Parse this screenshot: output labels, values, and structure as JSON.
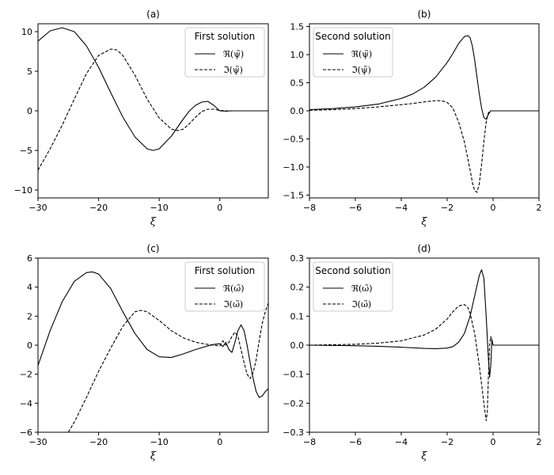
{
  "chart_data": [
    {
      "type": "line",
      "panel_label": "(a)",
      "xlabel": "ξ",
      "ylabel": "",
      "xlim": [
        -30,
        8
      ],
      "ylim": [
        -11,
        11
      ],
      "xticks": [
        "-30",
        "-20",
        "-10",
        "0"
      ],
      "yticks": [
        "-10",
        "-5",
        "0",
        "5",
        "10"
      ],
      "legend": {
        "title": "First solution",
        "placement": "top-right"
      },
      "series": [
        {
          "name": "ℜ(ψ̃)",
          "style": "solid",
          "x": [
            -30,
            -28,
            -26,
            -24,
            -22,
            -20,
            -18,
            -16,
            -14,
            -12,
            -11,
            -10,
            -8,
            -6,
            -5,
            -4,
            -3,
            -2,
            -1,
            0,
            1,
            2,
            4,
            6,
            8
          ],
          "y": [
            8.8,
            10.1,
            10.5,
            10.0,
            8.2,
            5.5,
            2.3,
            -0.8,
            -3.3,
            -4.8,
            -5.0,
            -4.8,
            -3.2,
            -1.0,
            0.0,
            0.7,
            1.1,
            1.2,
            0.7,
            0.0,
            -0.05,
            0,
            0,
            0,
            0
          ]
        },
        {
          "name": "ℑ(ψ̃)",
          "style": "dashed",
          "x": [
            -30,
            -28,
            -26,
            -24,
            -22,
            -20,
            -18,
            -17,
            -16,
            -14,
            -12,
            -10,
            -8,
            -7,
            -6,
            -5,
            -4,
            -3,
            -2,
            -1,
            0,
            1,
            2,
            4,
            6,
            8
          ],
          "y": [
            -7.5,
            -4.8,
            -1.8,
            1.5,
            4.7,
            7.0,
            7.8,
            7.7,
            7.0,
            4.5,
            1.5,
            -0.9,
            -2.3,
            -2.5,
            -2.3,
            -1.6,
            -0.8,
            -0.1,
            0.2,
            0.2,
            0.05,
            0,
            0,
            0,
            0,
            0
          ]
        }
      ]
    },
    {
      "type": "line",
      "panel_label": "(b)",
      "xlabel": "ξ",
      "ylabel": "",
      "xlim": [
        -8,
        2
      ],
      "ylim": [
        -1.55,
        1.55
      ],
      "xticks": [
        "-8",
        "-6",
        "-4",
        "-2",
        "0",
        "2"
      ],
      "yticks": [
        "-1.5",
        "-1.0",
        "-0.5",
        "0.0",
        "0.5",
        "1.0",
        "1.5"
      ],
      "legend": {
        "title": "Second solution",
        "placement": "top-left"
      },
      "series": [
        {
          "name": "ℜ(ψ̃)",
          "style": "solid",
          "x": [
            -8,
            -7,
            -6,
            -5,
            -4,
            -3.5,
            -3,
            -2.5,
            -2,
            -1.75,
            -1.5,
            -1.25,
            -1.1,
            -1.0,
            -0.9,
            -0.8,
            -0.7,
            -0.6,
            -0.5,
            -0.4,
            -0.3,
            -0.2,
            -0.1,
            0,
            0.5,
            1,
            2
          ],
          "y": [
            0.02,
            0.04,
            0.07,
            0.12,
            0.22,
            0.3,
            0.42,
            0.6,
            0.86,
            1.02,
            1.2,
            1.32,
            1.34,
            1.3,
            1.15,
            0.9,
            0.6,
            0.3,
            0.05,
            -0.12,
            -0.15,
            -0.06,
            0.0,
            0,
            0,
            0,
            0
          ]
        },
        {
          "name": "ℑ(ψ̃)",
          "style": "dashed",
          "x": [
            -8,
            -7,
            -6,
            -5,
            -4,
            -3.5,
            -3,
            -2.5,
            -2.25,
            -2,
            -1.75,
            -1.5,
            -1.25,
            -1.0,
            -0.9,
            -0.8,
            -0.7,
            -0.6,
            -0.5,
            -0.4,
            -0.3,
            -0.2,
            -0.1,
            0,
            0.5,
            1,
            2
          ],
          "y": [
            0.01,
            0.02,
            0.04,
            0.07,
            0.11,
            0.13,
            0.16,
            0.18,
            0.18,
            0.15,
            0.05,
            -0.2,
            -0.55,
            -1.05,
            -1.28,
            -1.42,
            -1.45,
            -1.3,
            -0.95,
            -0.55,
            -0.2,
            -0.03,
            0.0,
            0,
            0,
            0,
            0
          ]
        }
      ]
    },
    {
      "type": "line",
      "panel_label": "(c)",
      "xlabel": "ξ",
      "ylabel": "",
      "xlim": [
        -30,
        8
      ],
      "ylim": [
        -6,
        6
      ],
      "xticks": [
        "-30",
        "-20",
        "-10",
        "0"
      ],
      "yticks": [
        "-6",
        "-4",
        "-2",
        "0",
        "2",
        "4",
        "6"
      ],
      "legend": {
        "title": "First solution",
        "placement": "top-right"
      },
      "series": [
        {
          "name": "ℜ(ω̃)",
          "style": "solid",
          "x": [
            -30,
            -28,
            -26,
            -24,
            -22,
            -21,
            -20,
            -18,
            -16,
            -14,
            -12,
            -10,
            -8,
            -6,
            -4,
            -2,
            -1,
            0,
            0.5,
            1,
            1.5,
            2,
            2.5,
            3,
            3.5,
            4,
            4.5,
            5,
            5.5,
            6,
            6.5,
            7,
            7.5,
            8
          ],
          "y": [
            -1.4,
            1.0,
            3.0,
            4.4,
            5.0,
            5.05,
            4.9,
            3.9,
            2.3,
            0.8,
            -0.3,
            -0.8,
            -0.85,
            -0.6,
            -0.3,
            -0.05,
            0.05,
            0.1,
            -0.1,
            0.2,
            -0.3,
            -0.5,
            0.2,
            1.0,
            1.4,
            1.0,
            0.0,
            -1.2,
            -2.3,
            -3.2,
            -3.6,
            -3.5,
            -3.2,
            -3.0
          ]
        },
        {
          "name": "ℑ(ω̃)",
          "style": "dashed",
          "x": [
            -25,
            -24,
            -22,
            -20,
            -18,
            -16,
            -14,
            -13,
            -12,
            -10,
            -8,
            -6,
            -4,
            -2,
            -1,
            0,
            0.5,
            1,
            1.5,
            2,
            2.5,
            3,
            3.5,
            4,
            4.5,
            5,
            5.5,
            6,
            6.5,
            7,
            7.5,
            8
          ],
          "y": [
            -6.0,
            -5.3,
            -3.6,
            -1.8,
            -0.2,
            1.3,
            2.3,
            2.4,
            2.3,
            1.7,
            1.0,
            0.5,
            0.2,
            0.05,
            0.0,
            -0.05,
            0.3,
            0.0,
            0.2,
            0.6,
            0.9,
            0.6,
            -0.3,
            -1.2,
            -2.0,
            -2.3,
            -1.9,
            -1.0,
            0.3,
            1.5,
            2.3,
            2.9
          ]
        }
      ]
    },
    {
      "type": "line",
      "panel_label": "(d)",
      "xlabel": "ξ",
      "ylabel": "",
      "xlim": [
        -8,
        2
      ],
      "ylim": [
        -0.3,
        0.3
      ],
      "xticks": [
        "-8",
        "-6",
        "-4",
        "-2",
        "0",
        "2"
      ],
      "yticks": [
        "-0.3",
        "-0.2",
        "-0.1",
        "0.0",
        "0.1",
        "0.2",
        "0.3"
      ],
      "legend": {
        "title": "Second solution",
        "placement": "top-left"
      },
      "series": [
        {
          "name": "ℜ(ω̃)",
          "style": "solid",
          "x": [
            -8,
            -6,
            -5,
            -4,
            -3,
            -2.5,
            -2,
            -1.75,
            -1.5,
            -1.25,
            -1.0,
            -0.8,
            -0.6,
            -0.5,
            -0.4,
            -0.3,
            -0.2,
            -0.15,
            -0.1,
            -0.05,
            0,
            0.5,
            1,
            2
          ],
          "y": [
            0.0,
            -0.002,
            -0.004,
            -0.007,
            -0.011,
            -0.012,
            -0.01,
            -0.005,
            0.01,
            0.04,
            0.1,
            0.17,
            0.24,
            0.26,
            0.23,
            0.1,
            -0.05,
            -0.11,
            -0.07,
            0.02,
            0,
            0,
            0,
            0
          ]
        },
        {
          "name": "ℑ(ω̃)",
          "style": "dashed",
          "x": [
            -8,
            -6,
            -5,
            -4,
            -3,
            -2.5,
            -2,
            -1.75,
            -1.5,
            -1.25,
            -1.1,
            -1.0,
            -0.8,
            -0.6,
            -0.4,
            -0.3,
            -0.25,
            -0.2,
            -0.15,
            -0.1,
            -0.05,
            0,
            0.5,
            1,
            2
          ],
          "y": [
            0.0,
            0.003,
            0.007,
            0.015,
            0.035,
            0.055,
            0.09,
            0.115,
            0.135,
            0.14,
            0.13,
            0.11,
            0.04,
            -0.07,
            -0.2,
            -0.26,
            -0.23,
            -0.1,
            0.0,
            0.03,
            0.01,
            0,
            0,
            0,
            0
          ]
        }
      ]
    }
  ]
}
